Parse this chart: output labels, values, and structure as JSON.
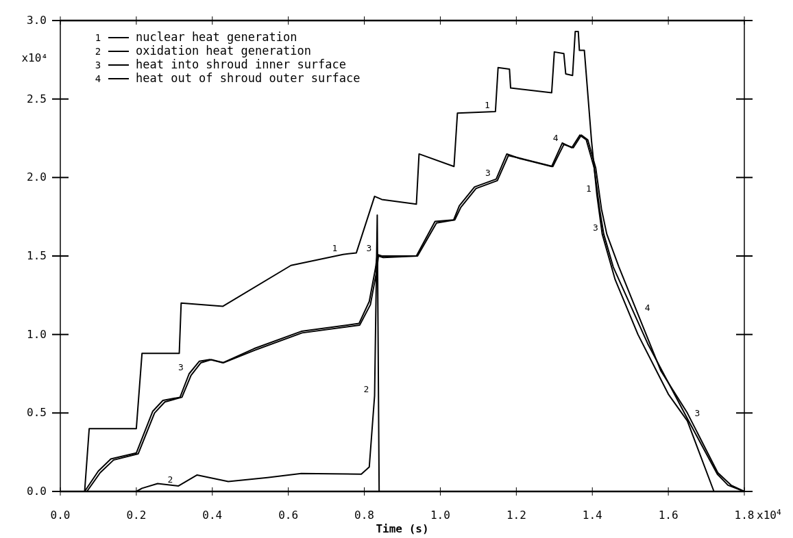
{
  "chart_data": {
    "type": "line",
    "xlabel": "Time (s)",
    "ylabel": "x10⁴",
    "legend": "top left",
    "grid": false,
    "marker": "none",
    "line_style": "solid",
    "xlim": [
      0,
      1.8
    ],
    "xticks": [
      {
        "value": 0,
        "label": "0.0"
      },
      0.2,
      0.4,
      0.6,
      0.8,
      {
        "value": 1,
        "label": "1.0"
      },
      1.2,
      1.4,
      1.6,
      1.8
    ],
    "ylim": [
      0,
      3
    ],
    "yticks": [
      {
        "value": 0,
        "label": "0.0"
      },
      0.5,
      {
        "value": 1,
        "label": "1.0"
      },
      1.5,
      {
        "value": 2,
        "label": "2.0"
      },
      2.5,
      {
        "value": 3,
        "label": "3.0"
      }
    ],
    "series": [
      {
        "name": "nuclear heat generation",
        "color": "#000000",
        "x": [
          0,
          0.064,
          0.076,
          0.2,
          0.215,
          0.313,
          0.318,
          0.428,
          0.607,
          0.744,
          0.779,
          0.827,
          0.846,
          0.937,
          0.944,
          1.036,
          1.045,
          1.145,
          1.152,
          1.182,
          1.185,
          1.293,
          1.3,
          1.325,
          1.33,
          1.348,
          1.355,
          1.363,
          1.366,
          1.379,
          1.398,
          1.412,
          1.426,
          1.46,
          1.52,
          1.6,
          1.65,
          1.72,
          1.8
        ],
        "values": [
          0,
          0,
          0.4,
          0.4,
          0.88,
          0.88,
          1.2,
          1.18,
          1.44,
          1.51,
          1.52,
          1.88,
          1.86,
          1.83,
          2.15,
          2.07,
          2.41,
          2.42,
          2.7,
          2.69,
          2.57,
          2.54,
          2.8,
          2.79,
          2.66,
          2.65,
          2.93,
          2.93,
          2.81,
          2.81,
          2.23,
          1.89,
          1.64,
          1.35,
          1.0,
          0.62,
          0.45,
          0,
          0
        ]
      },
      {
        "name": "oxidation heat generation",
        "color": "#000000",
        "x": [
          0,
          0.2,
          0.215,
          0.256,
          0.311,
          0.36,
          0.442,
          0.545,
          0.634,
          0.792,
          0.813,
          0.827,
          0.834,
          0.839,
          1.0,
          1.8
        ],
        "values": [
          0,
          0,
          0.02,
          0.05,
          0.035,
          0.105,
          0.063,
          0.088,
          0.114,
          0.11,
          0.156,
          0.61,
          1.76,
          0,
          0,
          0
        ]
      },
      {
        "name": "heat into shroud inner surface",
        "color": "#000000",
        "x": [
          0,
          0.064,
          0.1,
          0.133,
          0.2,
          0.243,
          0.27,
          0.315,
          0.339,
          0.366,
          0.394,
          0.428,
          0.51,
          0.634,
          0.786,
          0.813,
          0.83,
          0.834,
          0.846,
          0.937,
          0.986,
          1.035,
          1.05,
          1.09,
          1.147,
          1.175,
          1.21,
          1.293,
          1.321,
          1.346,
          1.367,
          1.384,
          1.405,
          1.419,
          1.43,
          1.455,
          1.546,
          1.651,
          1.729,
          1.757,
          1.8
        ],
        "values": [
          0,
          0,
          0.13,
          0.207,
          0.245,
          0.51,
          0.58,
          0.6,
          0.75,
          0.83,
          0.84,
          0.82,
          0.91,
          1.02,
          1.07,
          1.21,
          1.43,
          1.51,
          1.5,
          1.5,
          1.72,
          1.73,
          1.82,
          1.94,
          1.99,
          2.15,
          2.12,
          2.07,
          2.22,
          2.19,
          2.27,
          2.24,
          2.06,
          1.8,
          1.64,
          1.43,
          0.94,
          0.46,
          0.11,
          0.04,
          0
        ]
      },
      {
        "name": "heat out of shroud outer surface",
        "color": "#000000",
        "x": [
          0,
          0.07,
          0.105,
          0.14,
          0.205,
          0.248,
          0.275,
          0.32,
          0.344,
          0.37,
          0.398,
          0.43,
          0.512,
          0.636,
          0.788,
          0.816,
          0.833,
          0.837,
          0.85,
          0.94,
          0.99,
          1.038,
          1.054,
          1.094,
          1.15,
          1.179,
          1.214,
          1.296,
          1.325,
          1.35,
          1.371,
          1.388,
          1.409,
          1.424,
          1.438,
          1.47,
          1.58,
          1.65,
          1.73,
          1.765,
          1.8
        ],
        "values": [
          0,
          0,
          0.12,
          0.2,
          0.24,
          0.5,
          0.57,
          0.6,
          0.74,
          0.82,
          0.84,
          0.82,
          0.9,
          1.01,
          1.06,
          1.19,
          1.41,
          1.5,
          1.49,
          1.5,
          1.71,
          1.73,
          1.81,
          1.93,
          1.98,
          2.14,
          2.12,
          2.07,
          2.21,
          2.19,
          2.27,
          2.24,
          2.06,
          1.8,
          1.64,
          1.43,
          0.77,
          0.5,
          0.12,
          0.04,
          0
        ]
      }
    ],
    "annotations": [
      "x10$^{4}$",
      {
        "text": "1",
        "x": 1.145,
        "y": 2.42
      },
      {
        "text": "1",
        "x": 1.412,
        "y": 1.89
      },
      {
        "text": "1",
        "x": 0.744,
        "y": 1.51
      },
      {
        "text": "2",
        "x": 0.311,
        "y": 0.035
      },
      {
        "text": "2",
        "x": 0.827,
        "y": 0.61
      },
      {
        "text": "3",
        "x": 0.339,
        "y": 0.75
      },
      {
        "text": "3",
        "x": 1.147,
        "y": 1.99
      },
      {
        "text": "3",
        "x": 1.43,
        "y": 1.64
      },
      {
        "text": "3",
        "x": 0.834,
        "y": 1.51
      },
      {
        "text": "3",
        "x": 1.651,
        "y": 0.46
      },
      {
        "text": "4",
        "x": 1.52,
        "y": 1.13
      },
      {
        "text": "4",
        "x": 1.325,
        "y": 2.21
      }
    ]
  }
}
